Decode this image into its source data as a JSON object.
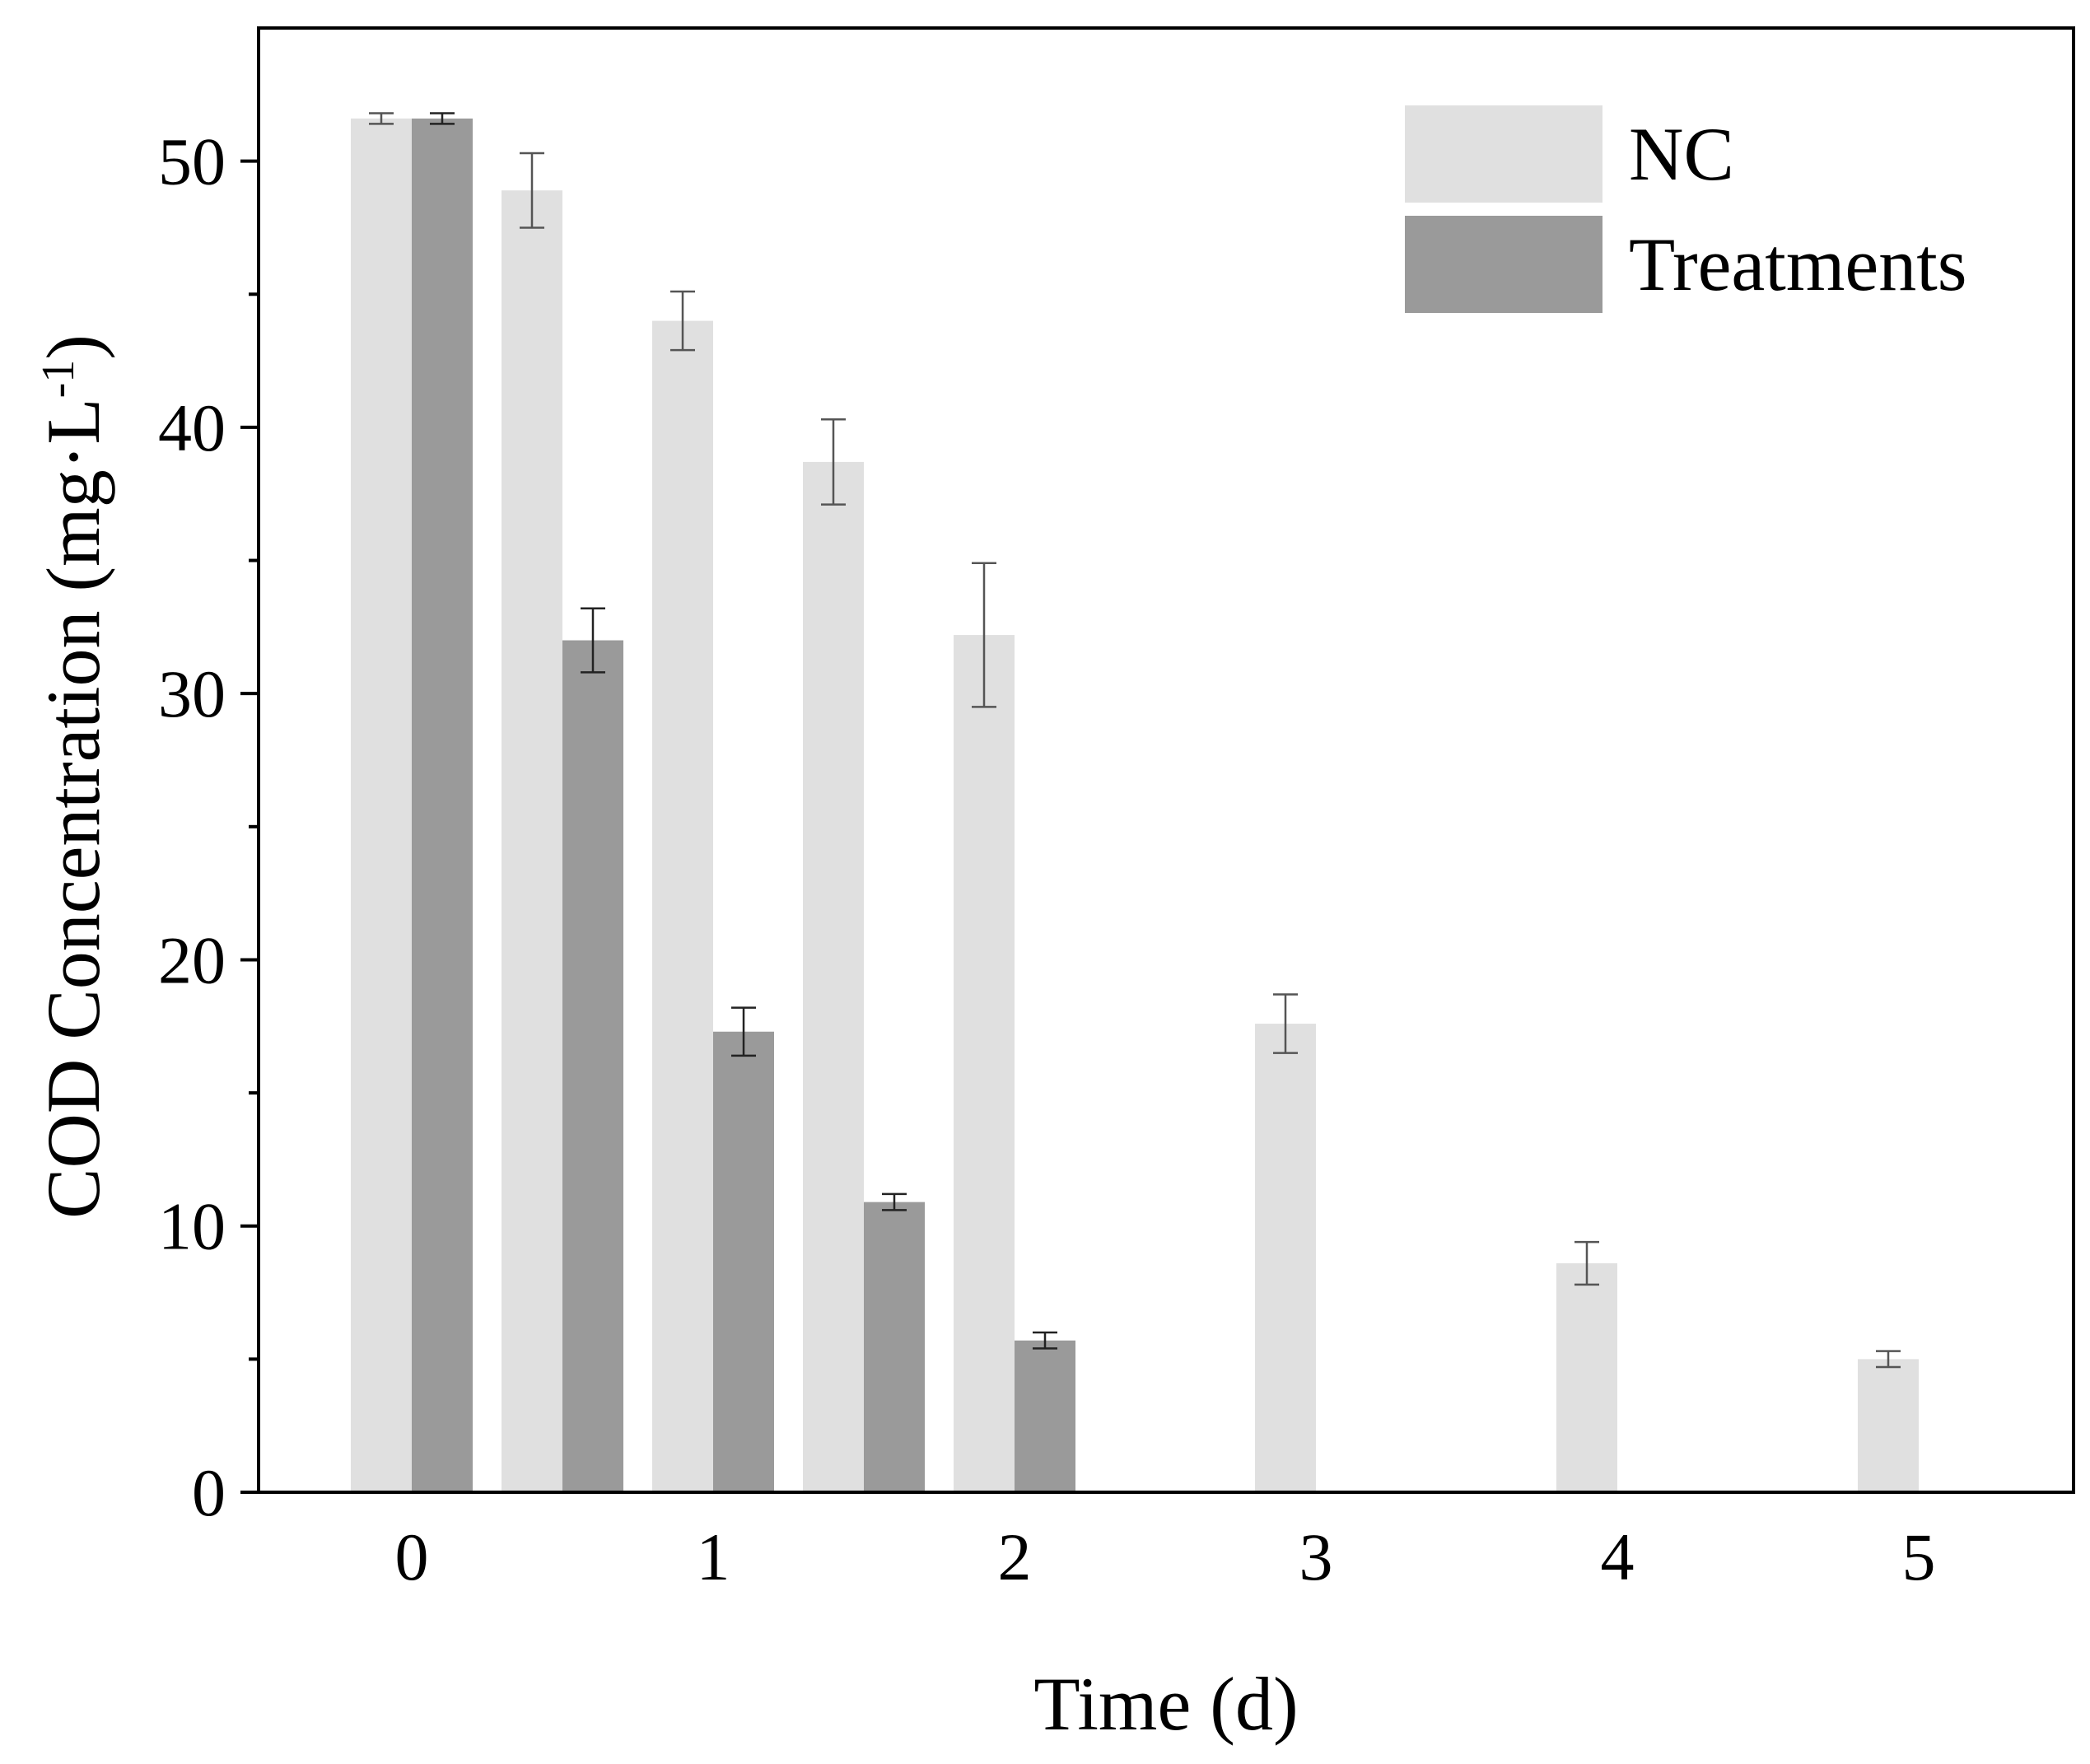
{
  "chart_data": {
    "type": "bar",
    "title": "",
    "xlabel": "Time (d)",
    "ylabel": "COD Concentration (mg·L",
    "ylabel_sup": "-1",
    "ylabel_close": ")",
    "ylim": [
      0,
      55
    ],
    "yticks": [
      0,
      10,
      20,
      30,
      40,
      50
    ],
    "xlim": [
      -0.5,
      5.5
    ],
    "xticks": [
      0,
      1,
      2,
      3,
      4,
      5
    ],
    "legend_position": "top-right",
    "series": [
      {
        "name": "NC",
        "color": "#e0e0e0",
        "x": [
          0,
          0.5,
          1,
          1.5,
          2,
          3,
          4,
          5
        ],
        "values": [
          51.6,
          48.9,
          44.0,
          38.7,
          32.2,
          17.6,
          8.6,
          5.0
        ],
        "errors": [
          0.2,
          1.4,
          1.1,
          1.6,
          2.7,
          1.1,
          0.8,
          0.3
        ]
      },
      {
        "name": "Treatments",
        "color": "#9a9a9a",
        "x": [
          0,
          0.5,
          1,
          1.5,
          2
        ],
        "values": [
          51.6,
          32.0,
          17.3,
          10.9,
          5.7
        ],
        "errors": [
          0.2,
          1.2,
          0.9,
          0.3,
          0.3
        ]
      }
    ]
  }
}
